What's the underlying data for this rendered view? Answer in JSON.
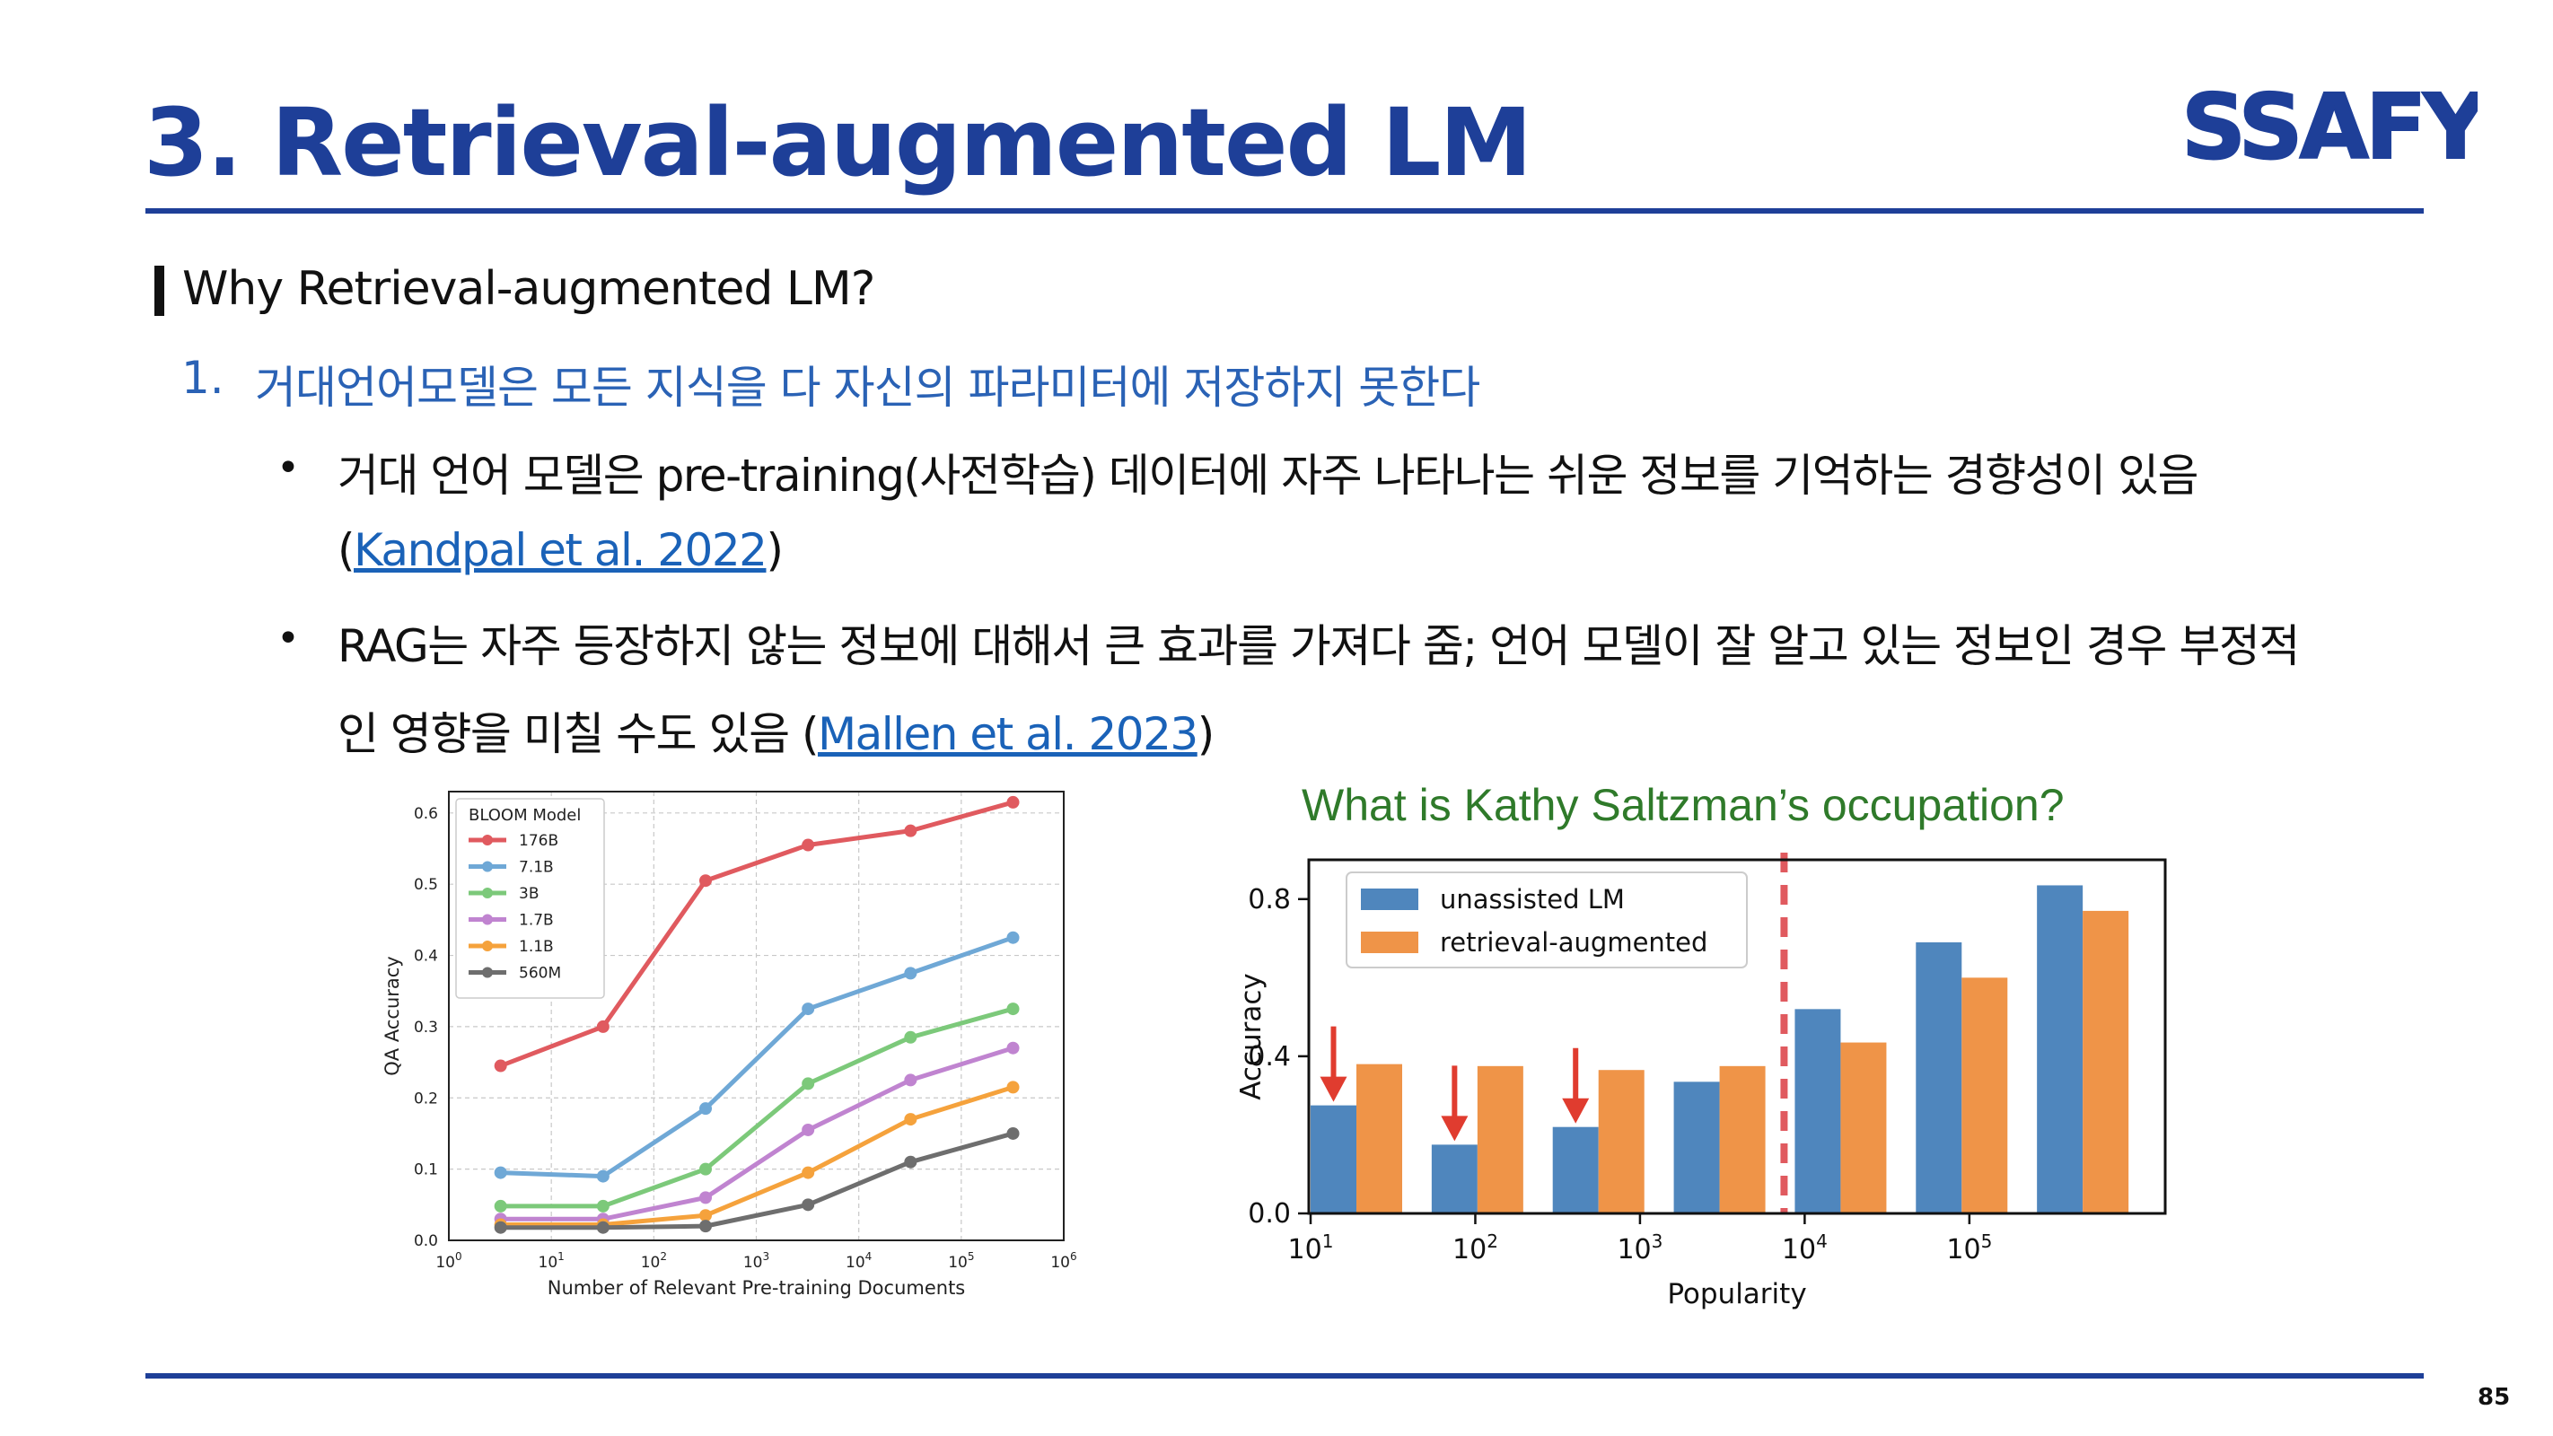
{
  "slide": {
    "title": "3. Retrieval-augmented LM",
    "logo_text": "SSAFY",
    "page_number": "85",
    "accent_color": "#1e3f98",
    "section_heading": "Why Retrieval-augmented LM?",
    "item1": {
      "number": "1.",
      "text": "거대언어모델은 모든 지식을 다 자신의 파라미터에 저장하지 못한다"
    },
    "bullet_symbol": "•",
    "bullet1": {
      "line1": "거대 언어 모델은 pre-training(사전학습) 데이터에 자주 나타나는 쉬운 정보를 기억하는 경향성이 있음",
      "paren_open": "(",
      "citation": "Kandpal et al. 2022",
      "paren_close": ")"
    },
    "bullet2": {
      "line1": "RAG는 자주 등장하지 않는 정보에 대해서 큰 효과를 가져다 줌; 언어 모델이 잘 알고 있는 정보인 경우 부정적",
      "line2_prefix": "인 영향을 미칠 수도 있음 (",
      "citation": "Mallen et al. 2023",
      "paren_close": ")"
    },
    "figure_caption": "What is Kathy Saltzman’s occupation?"
  },
  "chart_data": [
    {
      "type": "line",
      "legend_title": "BLOOM Model",
      "legend_position": "top-left",
      "xlabel": "Number of Relevant Pre-training Documents",
      "ylabel": "QA Accuracy",
      "x_scale": "log",
      "xlim": [
        1,
        1000000
      ],
      "ylim": [
        0.0,
        0.63
      ],
      "grid": true,
      "xticks": [
        {
          "value": 1,
          "base": "10",
          "exp": "0"
        },
        {
          "value": 10,
          "base": "10",
          "exp": "1"
        },
        {
          "value": 100,
          "base": "10",
          "exp": "2"
        },
        {
          "value": 1000,
          "base": "10",
          "exp": "3"
        },
        {
          "value": 10000,
          "base": "10",
          "exp": "4"
        },
        {
          "value": 100000,
          "base": "10",
          "exp": "5"
        },
        {
          "value": 1000000,
          "base": "10",
          "exp": "6"
        }
      ],
      "yticks": [
        "0.0",
        "0.1",
        "0.2",
        "0.3",
        "0.4",
        "0.5",
        "0.6"
      ],
      "x": [
        3.2,
        32,
        320,
        3200,
        32000,
        320000
      ],
      "series": [
        {
          "name": "176B",
          "color": "#e05a5f",
          "values": [
            0.245,
            0.3,
            0.505,
            0.555,
            0.575,
            0.615
          ]
        },
        {
          "name": "7.1B",
          "color": "#6fa8d6",
          "values": [
            0.095,
            0.09,
            0.185,
            0.325,
            0.375,
            0.425
          ]
        },
        {
          "name": "3B",
          "color": "#7cc97a",
          "values": [
            0.048,
            0.048,
            0.1,
            0.22,
            0.285,
            0.325
          ]
        },
        {
          "name": "1.7B",
          "color": "#c084d0",
          "values": [
            0.03,
            0.03,
            0.06,
            0.155,
            0.225,
            0.27
          ]
        },
        {
          "name": "1.1B",
          "color": "#f5a23c",
          "values": [
            0.022,
            0.022,
            0.035,
            0.095,
            0.17,
            0.215
          ]
        },
        {
          "name": "560M",
          "color": "#6e6e6e",
          "values": [
            0.018,
            0.018,
            0.02,
            0.05,
            0.11,
            0.15
          ]
        }
      ]
    },
    {
      "type": "bar",
      "xlabel": "Popularity",
      "ylabel": "Accuracy",
      "ylim": [
        0.0,
        0.9
      ],
      "yticks": [
        "0.0",
        "0.4",
        "0.8"
      ],
      "legend_position": "top-left",
      "xticks": [
        {
          "base": "10",
          "exp": "1"
        },
        {
          "base": "10",
          "exp": "2"
        },
        {
          "base": "10",
          "exp": "3"
        },
        {
          "base": "10",
          "exp": "4"
        },
        {
          "base": "10",
          "exp": "5"
        }
      ],
      "series": [
        {
          "name": "unassisted LM",
          "color": "#4f86bd",
          "values": [
            0.275,
            0.175,
            0.22,
            0.335,
            0.52,
            0.69,
            0.835
          ]
        },
        {
          "name": "retrieval-augmented",
          "color": "#ef9448",
          "values": [
            0.38,
            0.375,
            0.365,
            0.375,
            0.435,
            0.6,
            0.77
          ]
        }
      ],
      "arrows_on_groups": [
        0,
        1,
        2
      ],
      "arrow_color": "#e03c2f",
      "divider_color": "#e05a5f"
    }
  ]
}
